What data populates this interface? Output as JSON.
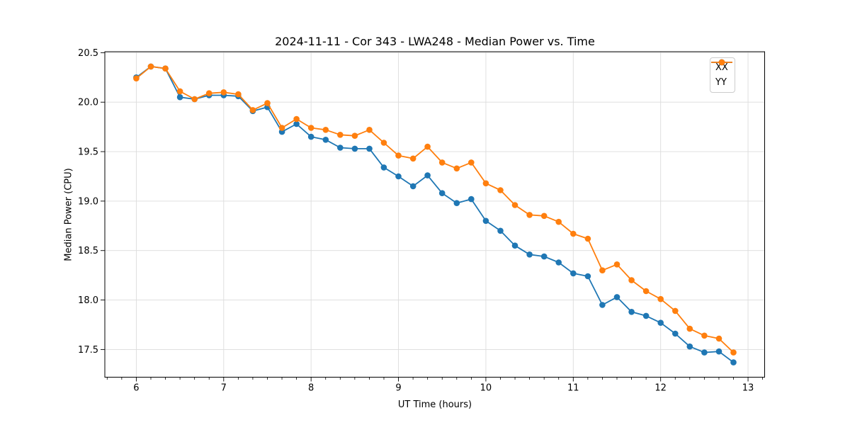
{
  "chart_data": {
    "type": "line",
    "title": "2024-11-11 - Cor 343 - LWA248 - Median Power vs. Time",
    "xlabel": "UT Time (hours)",
    "ylabel": "Median Power (CPU)",
    "x": [
      6.0,
      6.167,
      6.333,
      6.5,
      6.667,
      6.833,
      7.0,
      7.167,
      7.333,
      7.5,
      7.667,
      7.833,
      8.0,
      8.167,
      8.333,
      8.5,
      8.667,
      8.833,
      9.0,
      9.167,
      9.333,
      9.5,
      9.667,
      9.833,
      10.0,
      10.167,
      10.333,
      10.5,
      10.667,
      10.833,
      11.0,
      11.167,
      11.333,
      11.5,
      11.667,
      11.833,
      12.0,
      12.167,
      12.333,
      12.5,
      12.667,
      12.833
    ],
    "series": [
      {
        "name": "XX",
        "color": "#1f77b4",
        "values": [
          20.25,
          20.36,
          20.34,
          20.05,
          20.03,
          20.07,
          20.07,
          20.06,
          19.91,
          19.95,
          19.7,
          19.78,
          19.65,
          19.62,
          19.54,
          19.53,
          19.53,
          19.34,
          19.25,
          19.15,
          19.26,
          19.08,
          18.98,
          19.02,
          18.8,
          18.7,
          18.55,
          18.46,
          18.44,
          18.38,
          18.27,
          18.24,
          17.95,
          18.03,
          17.88,
          17.84,
          17.77,
          17.66,
          17.53,
          17.47,
          17.48,
          17.37
        ]
      },
      {
        "name": "YY",
        "color": "#ff7f0e",
        "values": [
          20.24,
          20.36,
          20.34,
          20.11,
          20.03,
          20.09,
          20.1,
          20.08,
          19.92,
          19.99,
          19.74,
          19.83,
          19.74,
          19.72,
          19.67,
          19.66,
          19.72,
          19.59,
          19.46,
          19.43,
          19.55,
          19.39,
          19.33,
          19.39,
          19.18,
          19.11,
          18.96,
          18.86,
          18.85,
          18.79,
          18.67,
          18.62,
          18.3,
          18.36,
          18.2,
          18.09,
          18.01,
          17.89,
          17.71,
          17.64,
          17.61,
          17.47
        ]
      }
    ],
    "xlim": [
      5.64,
      13.19
    ],
    "ylim": [
      17.22,
      20.51
    ],
    "xticks": {
      "values": [
        6,
        7,
        8,
        9,
        10,
        11,
        12,
        13
      ],
      "labels": [
        "6",
        "7",
        "8",
        "9",
        "10",
        "11",
        "12",
        "13"
      ]
    },
    "yticks": {
      "values": [
        17.5,
        18.0,
        18.5,
        19.0,
        19.5,
        20.0,
        20.5
      ],
      "labels": [
        "17.5",
        "18.0",
        "18.5",
        "19.0",
        "19.5",
        "20.0",
        "20.5"
      ]
    },
    "x_minor_divisions": 6,
    "grid": true,
    "legend_position": "upper right",
    "marker": "circle"
  },
  "style_colors": {
    "grid": "#dcdcdc",
    "spine": "#000000",
    "tick": "#000000",
    "text": "#000000",
    "background": "#ffffff",
    "legend_border": "#cccccc"
  }
}
